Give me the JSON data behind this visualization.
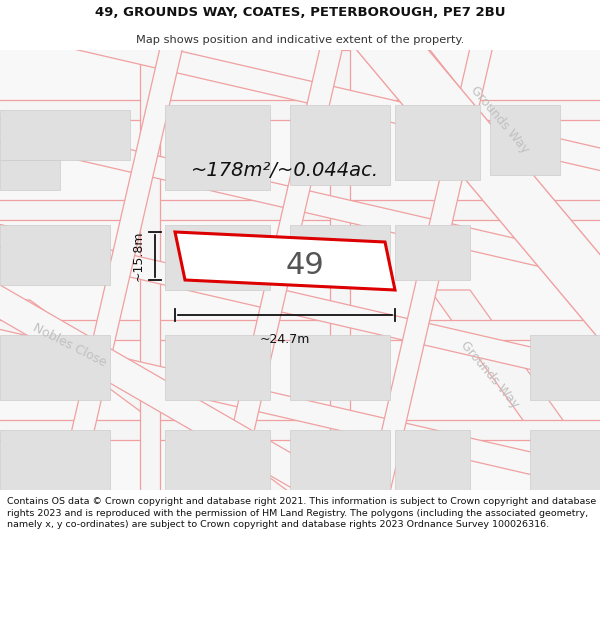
{
  "title_line1": "49, GROUNDS WAY, COATES, PETERBOROUGH, PE7 2BU",
  "title_line2": "Map shows position and indicative extent of the property.",
  "area_text": "~178m²/~0.044ac.",
  "property_number": "49",
  "dim_width": "~24.7m",
  "dim_height": "~15.8m",
  "road_label_right_top": "Grounds Way",
  "road_label_right_bottom": "Grounds Way",
  "road_label_left": "Nobles Close",
  "footer_text": "Contains OS data © Crown copyright and database right 2021. This information is subject to Crown copyright and database rights 2023 and is reproduced with the permission of HM Land Registry. The polygons (including the associated geometry, namely x, y co-ordinates) are subject to Crown copyright and database rights 2023 Ordnance Survey 100026316.",
  "bg_color": "#ffffff",
  "map_bg": "#f7f7f7",
  "building_fill": "#e0e0e0",
  "building_edge": "#cccccc",
  "road_line_color": "#f0a0a0",
  "road_fill": "#ffffff",
  "property_outline_color": "#dd0000",
  "property_fill": "#ffffff",
  "dim_line_color": "#111111",
  "road_label_color": "#c0c0c0",
  "title_fontsize": 9.5,
  "footer_fontsize": 7.0
}
